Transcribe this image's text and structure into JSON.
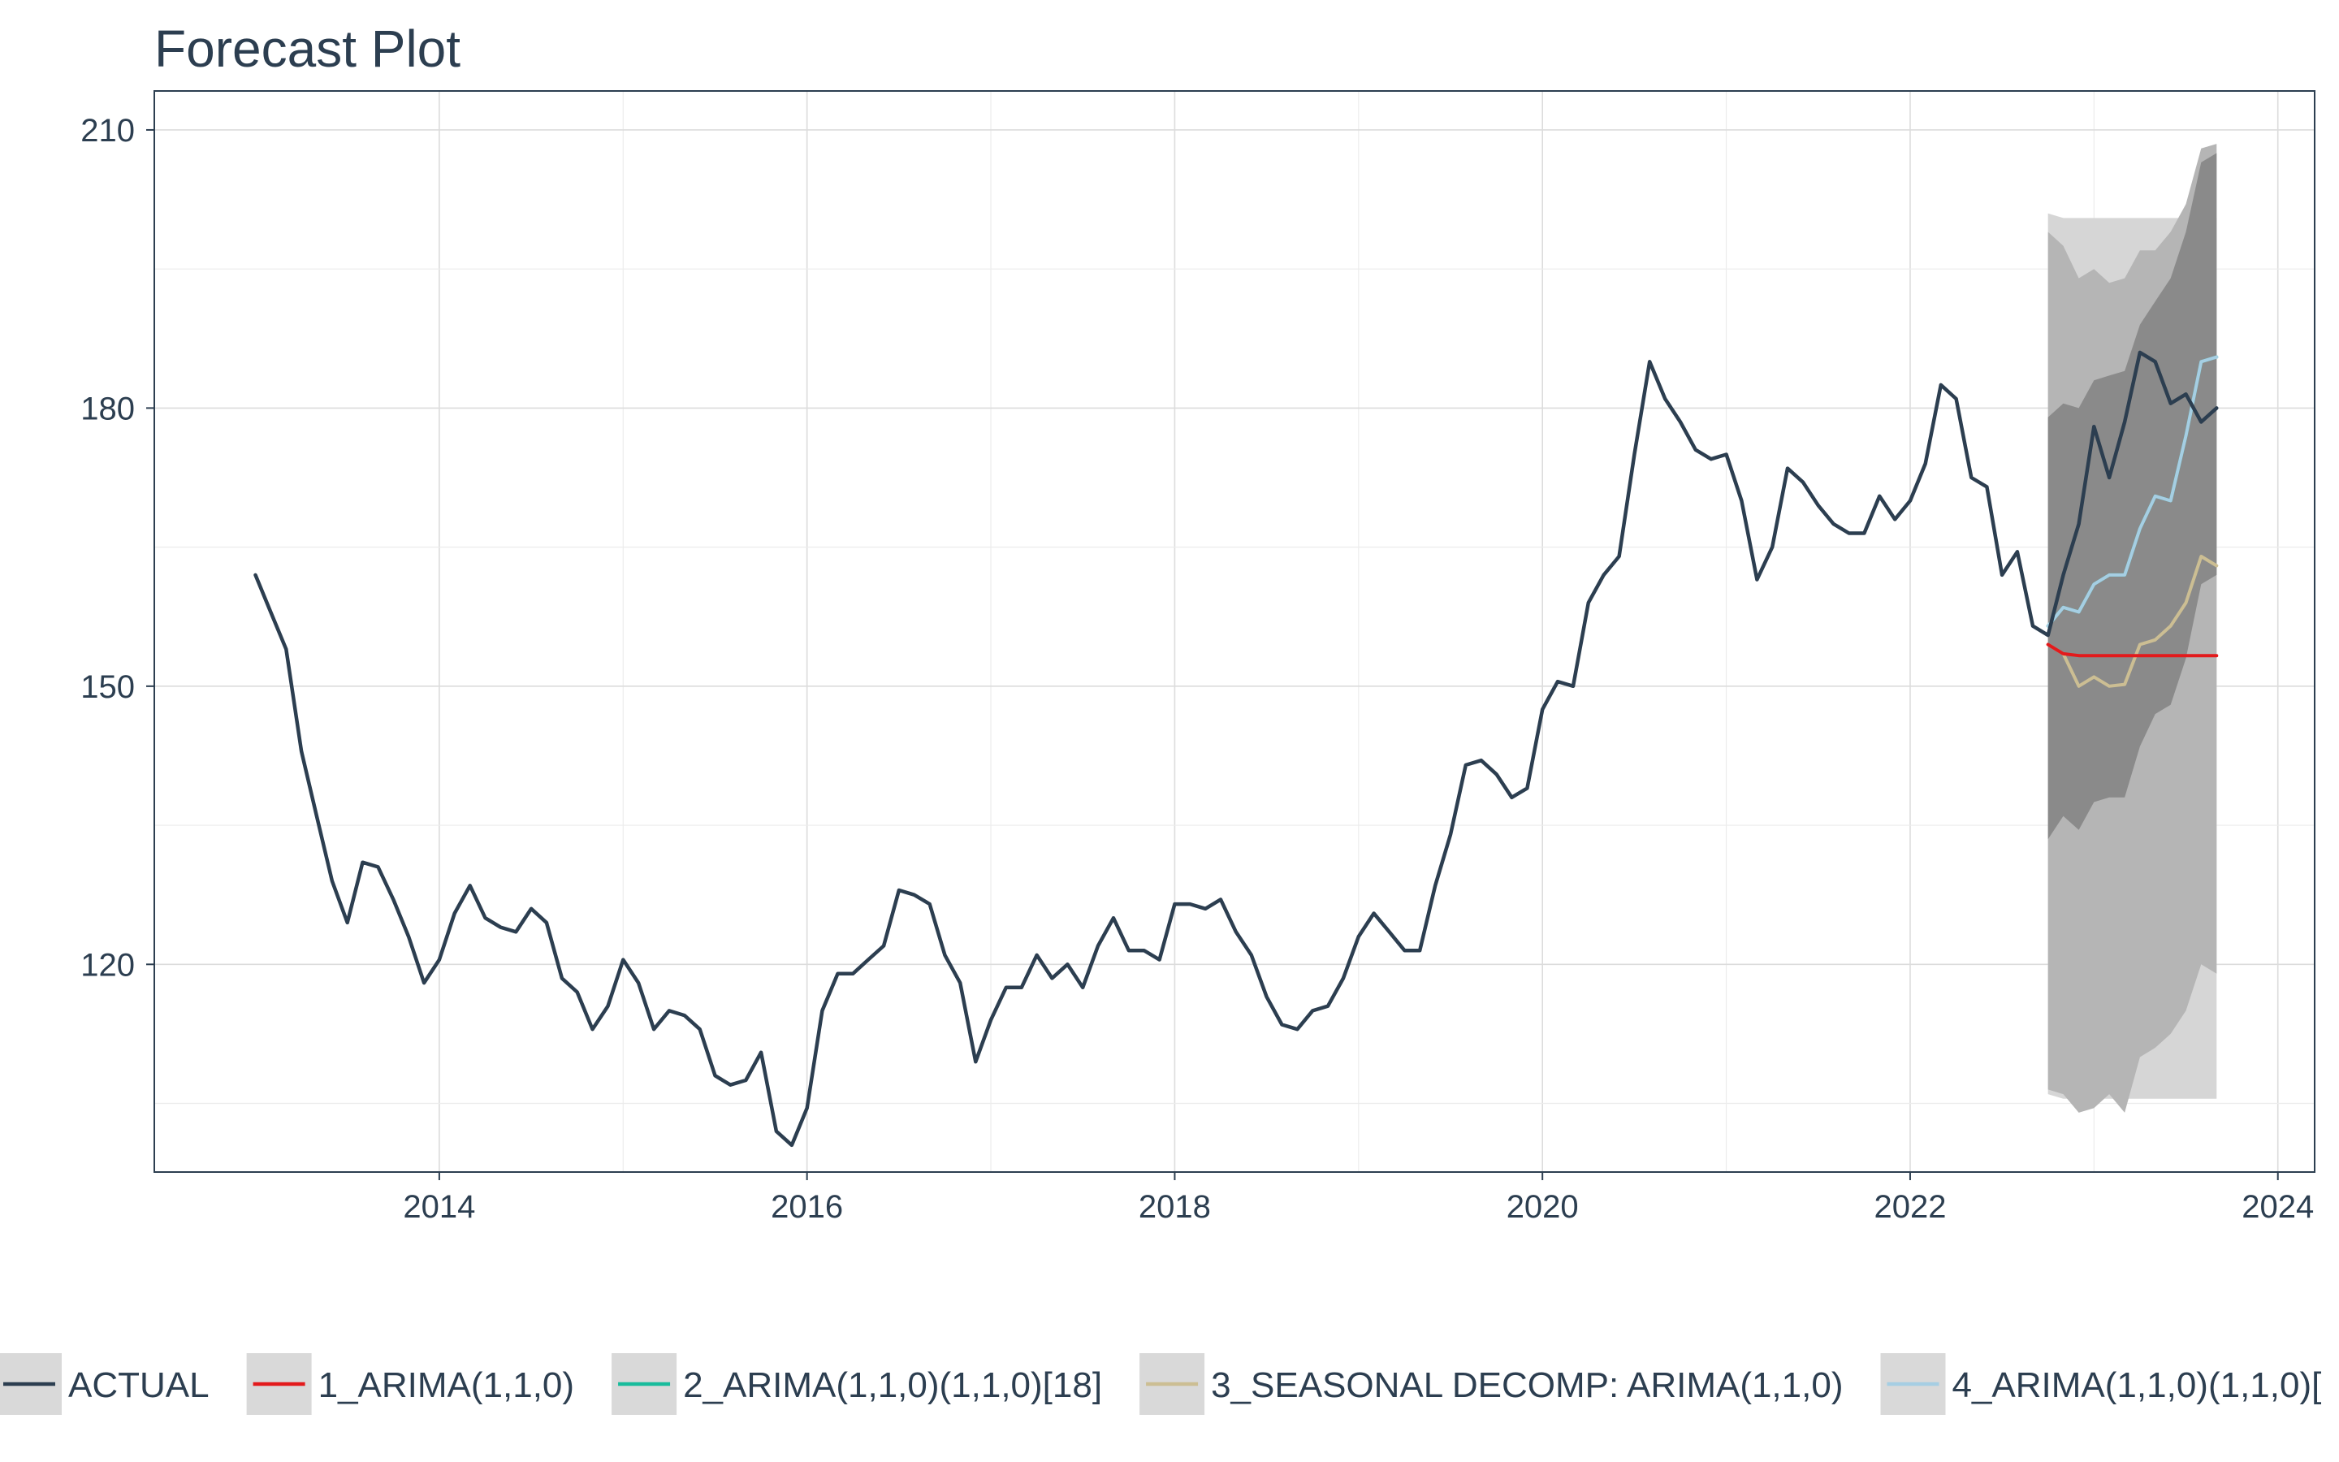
{
  "chart_data": {
    "type": "line",
    "title": "Forecast Plot",
    "xlabel": "",
    "ylabel": "",
    "xlim": [
      2012.45,
      2024.2
    ],
    "ylim": [
      97.6,
      214.2
    ],
    "x_ticks": [
      2014,
      2016,
      2018,
      2020,
      2022,
      2024
    ],
    "x_tick_labels": [
      "2014",
      "2016",
      "2018",
      "2020",
      "2022",
      "2024"
    ],
    "y_ticks": [
      120,
      150,
      180,
      210
    ],
    "y_tick_labels": [
      "120",
      "150",
      "180",
      "210"
    ],
    "grid": true,
    "legend_position": "bottom",
    "colors": {
      "actual": "#2c3e50",
      "arima1": "#e31a1c",
      "arima2": "#18bc9c",
      "seasonal": "#ccbe93",
      "arima4": "#a6cee3",
      "band_light": "#d6d6d6",
      "band_mid": "#b5b5b5",
      "band_dark": "#8a8a8a"
    },
    "series": [
      {
        "name": "ACTUAL",
        "key": "actual",
        "x": [
          2013.0,
          2013.083,
          2013.167,
          2013.25,
          2013.333,
          2013.417,
          2013.5,
          2013.583,
          2013.667,
          2013.75,
          2013.833,
          2013.917,
          2014.0,
          2014.083,
          2014.167,
          2014.25,
          2014.333,
          2014.417,
          2014.5,
          2014.583,
          2014.667,
          2014.75,
          2014.833,
          2014.917,
          2015.0,
          2015.083,
          2015.167,
          2015.25,
          2015.333,
          2015.417,
          2015.5,
          2015.583,
          2015.667,
          2015.75,
          2015.833,
          2015.917,
          2016.0,
          2016.083,
          2016.167,
          2016.25,
          2016.333,
          2016.417,
          2016.5,
          2016.583,
          2016.667,
          2016.75,
          2016.833,
          2016.917,
          2017.0,
          2017.083,
          2017.167,
          2017.25,
          2017.333,
          2017.417,
          2017.5,
          2017.583,
          2017.667,
          2017.75,
          2017.833,
          2017.917,
          2018.0,
          2018.083,
          2018.167,
          2018.25,
          2018.333,
          2018.417,
          2018.5,
          2018.583,
          2018.667,
          2018.75,
          2018.833,
          2018.917,
          2019.0,
          2019.083,
          2019.167,
          2019.25,
          2019.333,
          2019.417,
          2019.5,
          2019.583,
          2019.667,
          2019.75,
          2019.833,
          2019.917,
          2020.0,
          2020.083,
          2020.167,
          2020.25,
          2020.333,
          2020.417,
          2020.5,
          2020.583,
          2020.667,
          2020.75,
          2020.833,
          2020.917,
          2021.0,
          2021.083,
          2021.167,
          2021.25,
          2021.333,
          2021.417,
          2021.5,
          2021.583,
          2021.667,
          2021.75,
          2021.833,
          2021.917,
          2022.0,
          2022.083,
          2022.167,
          2022.25,
          2022.333,
          2022.417,
          2022.5,
          2022.583,
          2022.667,
          2022.75,
          2022.833,
          2022.917,
          2023.0,
          2023.083,
          2023.167,
          2023.25,
          2023.333,
          2023.417,
          2023.5,
          2023.583,
          2023.667
        ],
        "values": [
          162,
          158,
          154,
          143,
          136,
          129,
          124.5,
          131,
          130.5,
          127,
          123,
          118,
          120.5,
          125.5,
          128.5,
          125,
          124,
          123.5,
          126,
          124.5,
          118.5,
          117,
          113,
          115.5,
          120.5,
          118,
          113,
          115,
          114.5,
          113,
          108,
          107,
          107.5,
          110.5,
          102,
          100.5,
          104.5,
          115,
          119,
          119,
          120.5,
          122,
          128,
          127.5,
          126.5,
          121,
          118,
          109.5,
          114,
          117.5,
          117.5,
          121,
          118.5,
          120,
          117.5,
          122,
          125,
          121.5,
          121.5,
          120.5,
          126.5,
          126.5,
          126,
          127,
          123.5,
          121,
          116.5,
          113.5,
          113,
          115,
          115.5,
          118.5,
          123,
          125.5,
          123.5,
          121.5,
          121.5,
          128.5,
          134,
          141.5,
          142,
          140.5,
          138,
          139,
          147.5,
          150.5,
          150,
          159,
          162,
          164,
          175,
          185,
          181,
          178.5,
          175.5,
          174.5,
          175,
          170,
          161.5,
          165,
          173.5,
          172,
          169.5,
          167.5,
          166.5,
          166.5,
          170.5,
          168,
          170,
          174,
          182.5,
          181,
          172.5,
          171.5,
          162,
          164.5,
          156.5,
          155.5,
          162,
          167.5,
          178,
          172.5,
          178.5,
          186,
          185,
          180.5,
          181.5,
          178.5,
          180
        ]
      },
      {
        "name": "1_ARIMA(1,1,0)",
        "key": "arima1",
        "x": [
          2022.75,
          2022.833,
          2022.917,
          2023.0,
          2023.083,
          2023.167,
          2023.25,
          2023.333,
          2023.417,
          2023.5,
          2023.583,
          2023.667
        ],
        "values": [
          154.5,
          153.5,
          153.3,
          153.3,
          153.3,
          153.3,
          153.3,
          153.3,
          153.3,
          153.3,
          153.3,
          153.3
        ]
      },
      {
        "name": "2_ARIMA(1,1,0)(1,1,0)[18]",
        "key": "arima2",
        "x": [
          2022.75,
          2022.833,
          2022.917,
          2023.0,
          2023.083,
          2023.167,
          2023.25,
          2023.333,
          2023.417,
          2023.5,
          2023.583,
          2023.667
        ],
        "values": [
          156.5,
          158.5,
          158,
          161,
          162,
          162,
          167,
          170.5,
          170,
          177,
          185,
          185.5
        ]
      },
      {
        "name": "3_SEASONAL DECOMP: ARIMA(1,1,0)",
        "key": "seasonal",
        "x": [
          2022.75,
          2022.833,
          2022.917,
          2023.0,
          2023.083,
          2023.167,
          2023.25,
          2023.333,
          2023.417,
          2023.5,
          2023.583,
          2023.667
        ],
        "values": [
          154.5,
          153.5,
          150,
          151,
          150,
          150.2,
          154.5,
          155,
          156.5,
          159,
          164,
          163
        ]
      },
      {
        "name": "4_ARIMA(1,1,0)(1,1,0)[",
        "key": "arima4",
        "x": [
          2022.75,
          2022.833,
          2022.917,
          2023.0,
          2023.083,
          2023.167,
          2023.25,
          2023.333,
          2023.417,
          2023.5,
          2023.583,
          2023.667
        ],
        "values": [
          156.5,
          158.5,
          158,
          161,
          162,
          162,
          167,
          170.5,
          170,
          177,
          185,
          185.5
        ]
      }
    ],
    "intervals": {
      "x": [
        2022.75,
        2022.833,
        2022.917,
        2023.0,
        2023.083,
        2023.167,
        2023.25,
        2023.333,
        2023.417,
        2023.5,
        2023.583,
        2023.667
      ],
      "light_lower": [
        106,
        105.5,
        105.5,
        105.5,
        105.5,
        105.5,
        105.5,
        105.5,
        105.5,
        105.5,
        105.5,
        105.5
      ],
      "light_upper": [
        201,
        200.5,
        200.5,
        200.5,
        200.5,
        200.5,
        200.5,
        200.5,
        200.5,
        200.5,
        200.5,
        200.5
      ],
      "mid_lower": [
        106.5,
        106,
        104,
        104.5,
        106,
        104,
        110,
        111,
        112.5,
        115,
        120,
        119
      ],
      "mid_upper": [
        199,
        197.5,
        194,
        195,
        193.5,
        194,
        197,
        197,
        199,
        202,
        208,
        208.5
      ],
      "dark_lower": [
        133.5,
        136,
        134.5,
        137.5,
        138,
        138,
        143.5,
        147,
        148,
        153,
        161,
        162
      ],
      "dark_upper": [
        179,
        180.5,
        180,
        183,
        183.5,
        184,
        189,
        191.5,
        194,
        199,
        206.5,
        207.5
      ]
    }
  },
  "legend": {
    "items": [
      {
        "label": "ACTUAL",
        "key": "actual"
      },
      {
        "label": "1_ARIMA(1,1,0)",
        "key": "arima1"
      },
      {
        "label": "2_ARIMA(1,1,0)(1,1,0)[18]",
        "key": "arima2"
      },
      {
        "label": "3_SEASONAL DECOMP: ARIMA(1,1,0)",
        "key": "seasonal"
      },
      {
        "label": "4_ARIMA(1,1,0)(1,1,0)[",
        "key": "arima4"
      }
    ]
  }
}
